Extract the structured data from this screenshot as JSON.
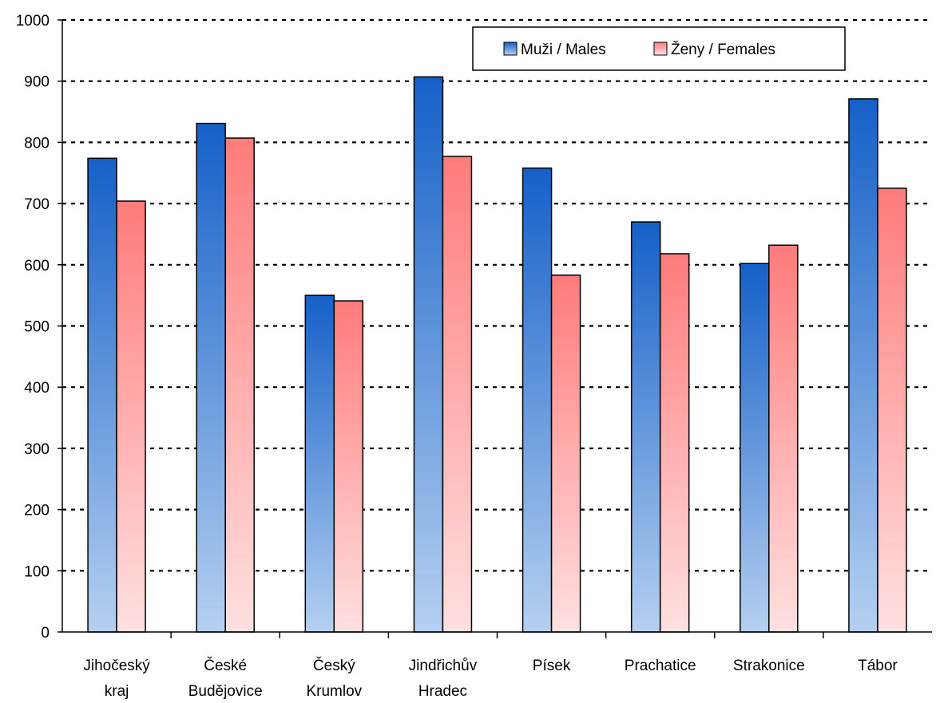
{
  "chart_data": {
    "type": "bar",
    "categories": [
      [
        "Jihočeský",
        "kraj"
      ],
      [
        "České",
        "Budějovice"
      ],
      [
        "Český",
        "Krumlov"
      ],
      [
        "Jindřichův",
        "Hradec"
      ],
      [
        "Písek"
      ],
      [
        "Prachatice"
      ],
      [
        "Strakonice"
      ],
      [
        "Tábor"
      ]
    ],
    "series": [
      {
        "name": "Muži / Males",
        "values": [
          774,
          831,
          550,
          907,
          758,
          670,
          602,
          871
        ],
        "color_top": "#1560c8",
        "color_bottom": "#b5d0f0"
      },
      {
        "name": "Ženy / Females",
        "values": [
          704,
          807,
          541,
          777,
          583,
          618,
          632,
          725
        ],
        "color_top": "#ff7b7b",
        "color_bottom": "#ffe0e0"
      }
    ],
    "ylim": [
      0,
      1000
    ],
    "yticks": [
      "0",
      "100",
      "200",
      "300",
      "400",
      "500",
      "600",
      "700",
      "800",
      "900",
      "1000"
    ],
    "grid": true,
    "legend_position": "top-right"
  }
}
